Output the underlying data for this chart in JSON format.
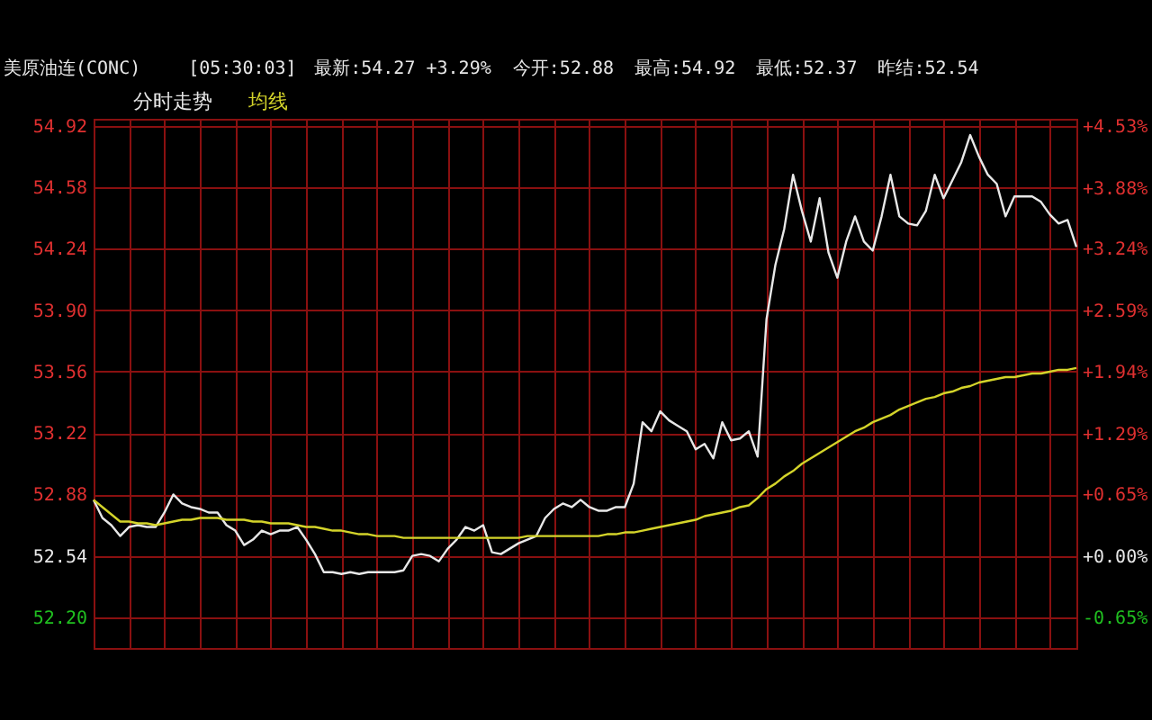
{
  "chart_data": {
    "type": "line",
    "title": "美原油连(CONC)",
    "annotations": [
      "[05:30:03]",
      "最新:54.27 +3.29%",
      "今开:52.88",
      "最高:54.92",
      "最低:52.37",
      "昨结:52.54"
    ],
    "categories": [
      null,
      null,
      null,
      null,
      null,
      null,
      null,
      null,
      null,
      null,
      null,
      null,
      null,
      null,
      null,
      null,
      null,
      null,
      null,
      null,
      null,
      null,
      null,
      null,
      null,
      null,
      null,
      null,
      null,
      null,
      null,
      null,
      null,
      null,
      null,
      null,
      null,
      null,
      null,
      null,
      null,
      null,
      null,
      null,
      null,
      null,
      null,
      null,
      null,
      null,
      null,
      null,
      null,
      null,
      null,
      null,
      null,
      null,
      null,
      null,
      null,
      null,
      null,
      null,
      null,
      null,
      null,
      null,
      null,
      null,
      null,
      null,
      null,
      null,
      null,
      null,
      null,
      null,
      null,
      null,
      null,
      null,
      null,
      null,
      null,
      null,
      null,
      null,
      null,
      null,
      null,
      null,
      null,
      null,
      null,
      null,
      null,
      null,
      null,
      null,
      null,
      null,
      null,
      null,
      null,
      null,
      null,
      null,
      null,
      null,
      null,
      null
    ],
    "series": [
      {
        "name": "分时走势",
        "color": "#e8e8e8",
        "values": [
          52.85,
          52.75,
          52.71,
          52.65,
          52.7,
          52.71,
          52.7,
          52.7,
          52.78,
          52.88,
          52.83,
          52.81,
          52.8,
          52.78,
          52.78,
          52.71,
          52.68,
          52.6,
          52.63,
          52.68,
          52.66,
          52.68,
          52.68,
          52.7,
          52.63,
          52.55,
          52.45,
          52.45,
          52.44,
          52.45,
          52.44,
          52.45,
          52.45,
          52.45,
          52.45,
          52.46,
          52.54,
          52.55,
          52.54,
          52.51,
          52.58,
          52.63,
          52.7,
          52.68,
          52.71,
          52.56,
          52.55,
          52.58,
          52.61,
          52.63,
          52.65,
          52.75,
          52.8,
          52.83,
          52.81,
          52.85,
          52.81,
          52.79,
          52.79,
          52.81,
          52.81,
          52.94,
          53.28,
          53.23,
          53.34,
          53.29,
          53.26,
          53.23,
          53.13,
          53.16,
          53.08,
          53.28,
          53.18,
          53.19,
          53.23,
          53.09,
          53.85,
          54.15,
          54.35,
          54.65,
          54.45,
          54.28,
          54.52,
          54.22,
          54.08,
          54.28,
          54.42,
          54.28,
          54.23,
          54.42,
          54.65,
          54.42,
          54.38,
          54.37,
          54.45,
          54.65,
          54.52,
          54.62,
          54.72,
          54.87,
          54.75,
          54.65,
          54.6,
          54.42,
          54.53,
          54.53,
          54.53,
          54.5,
          54.43,
          54.38,
          54.4,
          54.25
        ]
      },
      {
        "name": "均线",
        "color": "#d4d42a",
        "values": [
          52.85,
          52.81,
          52.77,
          52.73,
          52.73,
          52.72,
          52.72,
          52.71,
          52.72,
          52.73,
          52.74,
          52.74,
          52.75,
          52.75,
          52.75,
          52.74,
          52.74,
          52.74,
          52.73,
          52.73,
          52.72,
          52.72,
          52.72,
          52.71,
          52.7,
          52.7,
          52.69,
          52.68,
          52.68,
          52.67,
          52.66,
          52.66,
          52.65,
          52.65,
          52.65,
          52.64,
          52.64,
          52.64,
          52.64,
          52.64,
          52.64,
          52.64,
          52.64,
          52.64,
          52.64,
          52.64,
          52.64,
          52.64,
          52.64,
          52.65,
          52.65,
          52.65,
          52.65,
          52.65,
          52.65,
          52.65,
          52.65,
          52.65,
          52.66,
          52.66,
          52.67,
          52.67,
          52.68,
          52.69,
          52.7,
          52.71,
          52.72,
          52.73,
          52.74,
          52.76,
          52.77,
          52.78,
          52.79,
          52.81,
          52.82,
          52.86,
          52.91,
          52.94,
          52.98,
          53.01,
          53.05,
          53.08,
          53.11,
          53.14,
          53.17,
          53.2,
          53.23,
          53.25,
          53.28,
          53.3,
          53.32,
          53.35,
          53.37,
          53.39,
          53.41,
          53.42,
          53.44,
          53.45,
          53.47,
          53.48,
          53.5,
          53.51,
          53.52,
          53.53,
          53.53,
          53.54,
          53.55,
          53.55,
          53.56,
          53.57,
          53.57,
          53.58
        ]
      }
    ],
    "ylim": [
      52.03,
      54.96
    ],
    "yticks": [
      {
        "value": 52.2,
        "label": "52.20"
      },
      52.54,
      52.88,
      53.22,
      53.56,
      {
        "value": 53.9,
        "label": "53.90"
      },
      54.24,
      54.58,
      54.92
    ],
    "y2lim": [
      -0.97,
      4.61
    ],
    "y2ticks": [
      {
        "value": -0.65,
        "label": "-0.65%"
      },
      {
        "value": 0,
        "label": "+0.00%"
      },
      {
        "value": 0.65,
        "label": "+0.65%"
      },
      {
        "value": 1.29,
        "label": "+1.29%"
      },
      {
        "value": 1.94,
        "label": "+1.94%"
      },
      {
        "value": 2.59,
        "label": "+2.59%"
      },
      {
        "value": 3.24,
        "label": "+3.24%"
      },
      {
        "value": 3.88,
        "label": "+3.88%"
      },
      {
        "value": 4.53,
        "label": "+4.53%"
      }
    ],
    "tick_labels": "y",
    "grid": true,
    "line_style": "solid"
  }
}
